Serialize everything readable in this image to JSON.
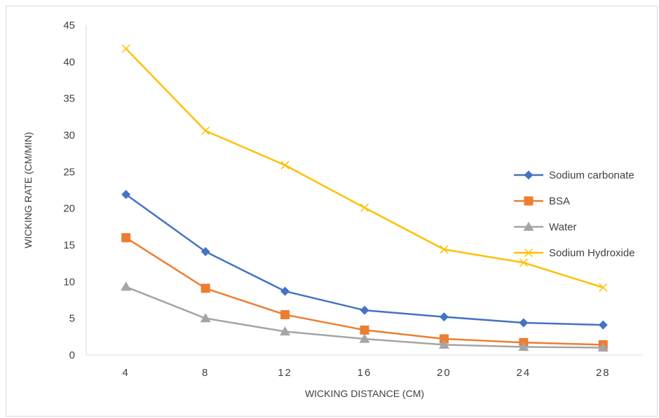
{
  "chart_data": {
    "type": "line",
    "title": "",
    "xlabel": "WICKING DISTANCE  (CM)",
    "ylabel": "WICKING RATE (CM/MIN)",
    "categories": [
      "4",
      "8",
      "12",
      "16",
      "20",
      "24",
      "28"
    ],
    "ylim": [
      0,
      45
    ],
    "yticks": [
      "0",
      "5",
      "10",
      "15",
      "20",
      "25",
      "30",
      "35",
      "40",
      "45"
    ],
    "grid": false,
    "legend_position": "right",
    "series": [
      {
        "name": "Sodium carbonate",
        "color": "#4472C4",
        "marker": "diamond",
        "values": [
          21.9,
          14.1,
          8.7,
          6.1,
          5.2,
          4.4,
          4.1
        ]
      },
      {
        "name": "BSA",
        "color": "#ED7D31",
        "marker": "square",
        "values": [
          16.0,
          9.1,
          5.5,
          3.4,
          2.2,
          1.7,
          1.4
        ]
      },
      {
        "name": "Water",
        "color": "#A5A5A5",
        "marker": "triangle",
        "values": [
          9.3,
          5.0,
          3.2,
          2.2,
          1.4,
          1.1,
          1.0
        ]
      },
      {
        "name": "Sodium Hydroxide",
        "color": "#FFC000",
        "marker": "x",
        "values": [
          41.8,
          30.6,
          25.9,
          20.1,
          14.4,
          12.6,
          9.2
        ]
      }
    ]
  }
}
